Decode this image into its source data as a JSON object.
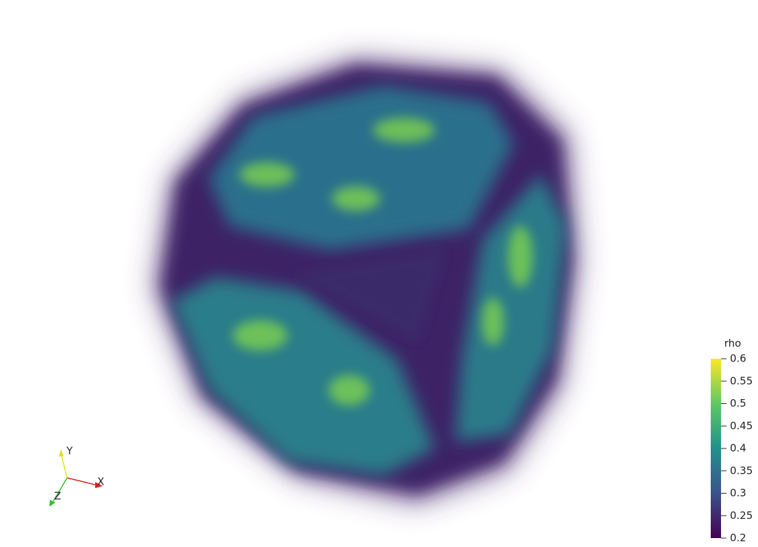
{
  "colorbar": {
    "title": "rho",
    "range": [
      0.2,
      0.6
    ],
    "ticks": [
      0.2,
      0.25,
      0.3,
      0.35,
      0.4,
      0.45,
      0.5,
      0.55,
      0.6
    ]
  },
  "axes": {
    "x": "X",
    "y": "Y",
    "z": "Z"
  }
}
